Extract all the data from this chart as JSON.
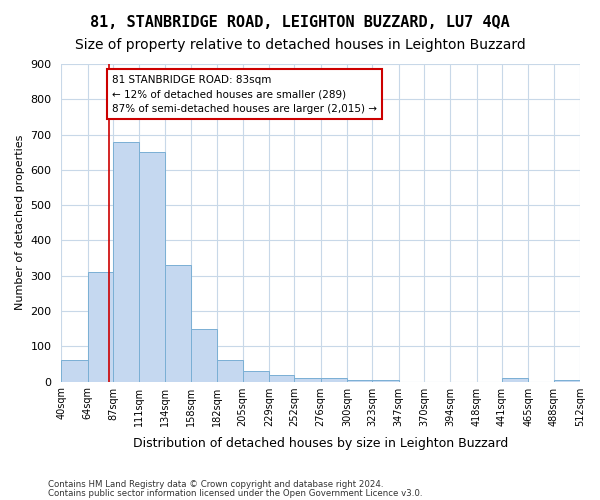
{
  "title": "81, STANBRIDGE ROAD, LEIGHTON BUZZARD, LU7 4QA",
  "subtitle": "Size of property relative to detached houses in Leighton Buzzard",
  "xlabel": "Distribution of detached houses by size in Leighton Buzzard",
  "ylabel": "Number of detached properties",
  "footnote1": "Contains HM Land Registry data © Crown copyright and database right 2024.",
  "footnote2": "Contains public sector information licensed under the Open Government Licence v3.0.",
  "bar_edges": [
    40,
    64,
    87,
    111,
    134,
    158,
    182,
    205,
    229,
    252,
    276,
    300,
    323,
    347,
    370,
    394,
    418,
    441,
    465,
    488,
    512
  ],
  "bar_heights": [
    62,
    310,
    680,
    650,
    330,
    148,
    62,
    30,
    18,
    10,
    10,
    5,
    5,
    0,
    0,
    0,
    0,
    10,
    0,
    5
  ],
  "bar_color": "#c5d8f0",
  "bar_edge_color": "#7aafd4",
  "marker_x": 83,
  "marker_color": "#cc0000",
  "annotation_line1": "81 STANBRIDGE ROAD: 83sqm",
  "annotation_line2": "← 12% of detached houses are smaller (289)",
  "annotation_line3": "87% of semi-detached houses are larger (2,015) →",
  "annotation_box_color": "#ffffff",
  "annotation_box_edgecolor": "#cc0000",
  "ylim": [
    0,
    900
  ],
  "yticks": [
    0,
    100,
    200,
    300,
    400,
    500,
    600,
    700,
    800,
    900
  ],
  "xlim": [
    40,
    512
  ],
  "bg_color": "#ffffff",
  "grid_color": "#c8d8e8",
  "title_fontsize": 11,
  "subtitle_fontsize": 10
}
